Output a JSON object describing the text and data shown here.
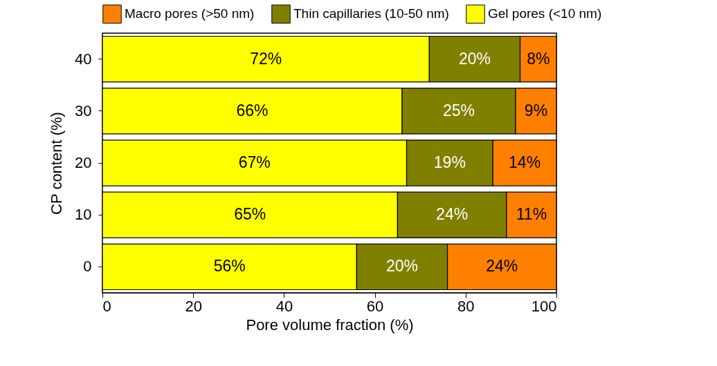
{
  "chart_data": {
    "type": "bar",
    "orientation": "horizontal",
    "stacked": true,
    "categories": [
      "40",
      "30",
      "20",
      "10",
      "0"
    ],
    "series": [
      {
        "name": "Gel pores (<10 nm)",
        "color": "#ffff00",
        "values": [
          72,
          66,
          67,
          65,
          56
        ],
        "value_labels": [
          "72%",
          "66%",
          "67%",
          "65%",
          "56%"
        ]
      },
      {
        "name": "Thin capillaries (10-50 nm)",
        "color": "#808000",
        "values": [
          20,
          25,
          19,
          24,
          20
        ],
        "value_labels": [
          "20%",
          "25%",
          "19%",
          "24%",
          "20%"
        ]
      },
      {
        "name": "Macro pores (>50 nm)",
        "color": "#ff8000",
        "values": [
          8,
          9,
          14,
          11,
          24
        ],
        "value_labels": [
          "8%",
          "9%",
          "14%",
          "11%",
          "24%"
        ]
      }
    ],
    "xlim": [
      0,
      100
    ],
    "xticks": [
      0,
      20,
      40,
      60,
      80,
      100
    ],
    "xlabel": "Pore volume fraction (%)",
    "ylabel": "CP content (%)",
    "legend": "top",
    "grid": false
  }
}
